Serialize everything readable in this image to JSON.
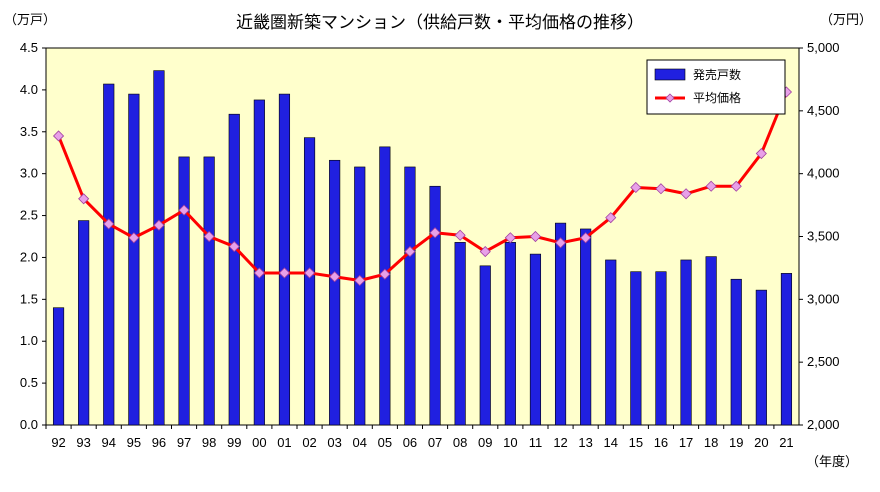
{
  "chart_data": {
    "type": "bar+line",
    "title": "近畿圏新築マンション（供給戸数・平均価格の推移）",
    "left_axis_unit": "（万戸）",
    "right_axis_unit": "（万円）",
    "x_unit": "（年度）",
    "categories": [
      "92",
      "93",
      "94",
      "95",
      "96",
      "97",
      "98",
      "99",
      "00",
      "01",
      "02",
      "03",
      "04",
      "05",
      "06",
      "07",
      "08",
      "09",
      "10",
      "11",
      "12",
      "13",
      "14",
      "15",
      "16",
      "17",
      "18",
      "19",
      "20",
      "21"
    ],
    "y_left": {
      "range": [
        0.0,
        4.5
      ],
      "ticks": [
        "0.0",
        "0.5",
        "1.0",
        "1.5",
        "2.0",
        "2.5",
        "3.0",
        "3.5",
        "4.0",
        "4.5"
      ],
      "values": [
        0,
        0.5,
        1.0,
        1.5,
        2.0,
        2.5,
        3.0,
        3.5,
        4.0,
        4.5
      ]
    },
    "y_right": {
      "range": [
        2000,
        5000
      ],
      "ticks": [
        "2,000",
        "2,500",
        "3,000",
        "3,500",
        "4,000",
        "4,500",
        "5,000"
      ],
      "values": [
        2000,
        2500,
        3000,
        3500,
        4000,
        4500,
        5000
      ]
    },
    "series": [
      {
        "name": "発売戸数",
        "type": "bar",
        "axis": "left",
        "color": "#2020e0",
        "values": [
          1.4,
          2.44,
          4.07,
          3.95,
          4.23,
          3.2,
          3.2,
          3.71,
          3.88,
          3.95,
          3.43,
          3.16,
          3.08,
          3.32,
          3.08,
          2.85,
          2.18,
          1.9,
          2.18,
          2.04,
          2.41,
          2.34,
          1.97,
          1.83,
          1.83,
          1.97,
          2.01,
          1.74,
          1.61,
          1.81
        ]
      },
      {
        "name": "平均価格",
        "type": "line",
        "axis": "right",
        "color": "#ff0000",
        "marker_color": "#e8a0e8",
        "values": [
          4300,
          3800,
          3600,
          3490,
          3590,
          3710,
          3500,
          3420,
          3210,
          3210,
          3210,
          3180,
          3150,
          3200,
          3380,
          3530,
          3510,
          3380,
          3490,
          3500,
          3450,
          3490,
          3650,
          3890,
          3880,
          3840,
          3900,
          3900,
          4160,
          4650
        ]
      }
    ],
    "plot_background": "#ffffcc",
    "legend_position": "top-right"
  }
}
